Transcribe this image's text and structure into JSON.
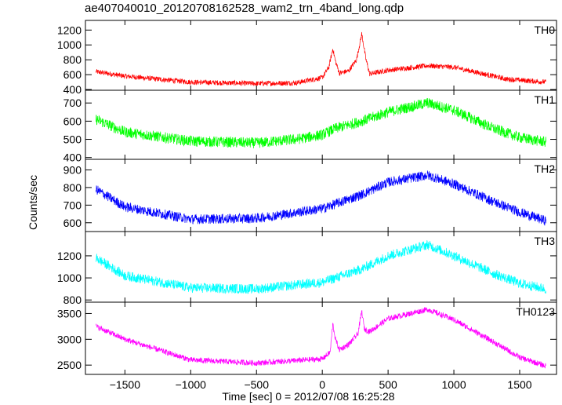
{
  "chart_data": {
    "type": "line",
    "title": "ae407040010_20120708162528_wam2_trn_4band_long.qdp",
    "xlabel": "Time [sec] 0 = 2012/07/08 16:25:28",
    "ylabel": "Counts/sec",
    "xlim": [
      -1800,
      1780
    ],
    "xticks": [
      -1500,
      -1000,
      -500,
      0,
      500,
      1000,
      1500
    ],
    "xtick_labels": [
      "−1500",
      "−1000",
      "−500",
      "0",
      "500",
      "1000",
      "1500"
    ],
    "panels": [
      {
        "name": "TH0",
        "color": "#ff0000",
        "ylim": [
          390,
          1330
        ],
        "yticks": [
          400,
          600,
          800,
          1000,
          1200
        ],
        "x": [
          -1720,
          -1500,
          -1000,
          -500,
          -200,
          0,
          50,
          80,
          100,
          130,
          200,
          260,
          300,
          330,
          360,
          500,
          800,
          1000,
          1400,
          1700
        ],
        "y": [
          640,
          580,
          500,
          480,
          490,
          560,
          700,
          950,
          780,
          620,
          650,
          800,
          1150,
          820,
          610,
          660,
          720,
          700,
          540,
          500
        ],
        "noise": 35
      },
      {
        "name": "TH1",
        "color": "#00ff00",
        "ylim": [
          390,
          770
        ],
        "yticks": [
          400,
          500,
          600,
          700
        ],
        "x": [
          -1720,
          -1500,
          -1000,
          -500,
          -200,
          0,
          100,
          300,
          500,
          800,
          1000,
          1300,
          1500,
          1700
        ],
        "y": [
          610,
          540,
          490,
          480,
          500,
          525,
          560,
          600,
          650,
          700,
          660,
          560,
          510,
          485
        ],
        "noise": 30
      },
      {
        "name": "TH2",
        "color": "#0000ff",
        "ylim": [
          550,
          960
        ],
        "yticks": [
          600,
          700,
          800,
          900
        ],
        "x": [
          -1720,
          -1500,
          -1000,
          -500,
          0,
          300,
          500,
          800,
          1000,
          1300,
          1500,
          1700
        ],
        "y": [
          790,
          690,
          620,
          625,
          680,
          760,
          830,
          870,
          820,
          720,
          660,
          610
        ],
        "noise": 28
      },
      {
        "name": "TH3",
        "color": "#00ffff",
        "ylim": [
          780,
          1420
        ],
        "yticks": [
          800,
          1000,
          1200
        ],
        "x": [
          -1720,
          -1500,
          -1000,
          -500,
          0,
          300,
          500,
          800,
          1000,
          1300,
          1500,
          1700
        ],
        "y": [
          1180,
          1020,
          910,
          900,
          960,
          1080,
          1200,
          1300,
          1200,
          1040,
          950,
          900
        ],
        "noise": 45
      },
      {
        "name": "TH0123",
        "color": "#ff00ff",
        "ylim": [
          2320,
          3720
        ],
        "yticks": [
          2500,
          3000,
          3500
        ],
        "x": [
          -1720,
          -1500,
          -1000,
          -500,
          0,
          60,
          80,
          100,
          130,
          200,
          270,
          300,
          320,
          360,
          500,
          800,
          1000,
          1300,
          1500,
          1700
        ],
        "y": [
          3250,
          3000,
          2600,
          2540,
          2620,
          2750,
          3300,
          3000,
          2800,
          2900,
          3100,
          3550,
          3200,
          3150,
          3400,
          3580,
          3380,
          2950,
          2650,
          2480
        ],
        "noise": 55
      }
    ]
  }
}
